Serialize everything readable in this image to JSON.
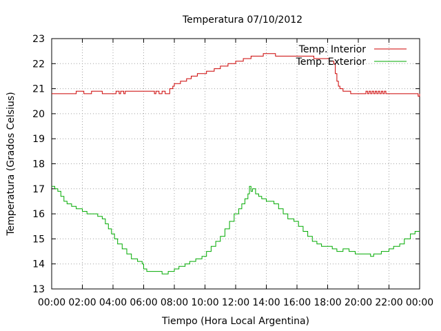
{
  "chart_data": {
    "type": "line",
    "title": "Temperatura 07/10/2012",
    "xlabel": "Tiempo (Hora Local Argentina)",
    "ylabel": "Temperatura (Grados Celsius)",
    "xlim": [
      0,
      24
    ],
    "ylim": [
      13,
      23
    ],
    "grid": true,
    "legend_position": "top-right",
    "x_tick_labels": [
      "00:00",
      "02:00",
      "04:00",
      "06:00",
      "08:00",
      "10:00",
      "12:00",
      "14:00",
      "16:00",
      "18:00",
      "20:00",
      "22:00",
      "00:00"
    ],
    "y_tick_labels": [
      "13",
      "14",
      "15",
      "16",
      "17",
      "18",
      "19",
      "20",
      "21",
      "22",
      "23"
    ],
    "series": [
      {
        "name": "Temp. Interior",
        "color": "#cc0000",
        "points": [
          [
            0.0,
            20.8
          ],
          [
            1.5,
            20.8
          ],
          [
            1.6,
            20.9
          ],
          [
            2.0,
            20.9
          ],
          [
            2.1,
            20.8
          ],
          [
            2.5,
            20.8
          ],
          [
            2.6,
            20.9
          ],
          [
            3.2,
            20.9
          ],
          [
            3.3,
            20.8
          ],
          [
            4.1,
            20.8
          ],
          [
            4.2,
            20.9
          ],
          [
            4.4,
            20.8
          ],
          [
            4.5,
            20.9
          ],
          [
            4.7,
            20.8
          ],
          [
            4.8,
            20.9
          ],
          [
            6.6,
            20.9
          ],
          [
            6.7,
            20.8
          ],
          [
            6.8,
            20.9
          ],
          [
            7.0,
            20.8
          ],
          [
            7.2,
            20.9
          ],
          [
            7.4,
            20.8
          ],
          [
            7.6,
            20.8
          ],
          [
            7.7,
            21.0
          ],
          [
            7.9,
            21.1
          ],
          [
            8.0,
            21.2
          ],
          [
            8.4,
            21.3
          ],
          [
            8.8,
            21.4
          ],
          [
            9.1,
            21.5
          ],
          [
            9.5,
            21.6
          ],
          [
            10.0,
            21.6
          ],
          [
            10.1,
            21.7
          ],
          [
            10.6,
            21.8
          ],
          [
            11.0,
            21.9
          ],
          [
            11.5,
            22.0
          ],
          [
            12.0,
            22.1
          ],
          [
            12.5,
            22.2
          ],
          [
            13.0,
            22.3
          ],
          [
            13.7,
            22.3
          ],
          [
            13.8,
            22.4
          ],
          [
            14.5,
            22.4
          ],
          [
            14.6,
            22.3
          ],
          [
            17.0,
            22.3
          ],
          [
            17.1,
            22.2
          ],
          [
            18.0,
            22.2
          ],
          [
            18.1,
            22.1
          ],
          [
            18.4,
            22.0
          ],
          [
            18.5,
            21.6
          ],
          [
            18.6,
            21.3
          ],
          [
            18.7,
            21.1
          ],
          [
            18.8,
            21.0
          ],
          [
            19.0,
            20.9
          ],
          [
            19.5,
            20.8
          ],
          [
            20.4,
            20.8
          ],
          [
            20.5,
            20.9
          ],
          [
            20.6,
            20.8
          ],
          [
            20.7,
            20.9
          ],
          [
            20.8,
            20.8
          ],
          [
            20.9,
            20.9
          ],
          [
            21.0,
            20.8
          ],
          [
            21.1,
            20.9
          ],
          [
            21.2,
            20.8
          ],
          [
            21.3,
            20.9
          ],
          [
            21.4,
            20.8
          ],
          [
            21.5,
            20.9
          ],
          [
            21.6,
            20.8
          ],
          [
            21.7,
            20.9
          ],
          [
            21.8,
            20.8
          ],
          [
            23.8,
            20.8
          ],
          [
            23.9,
            20.7
          ],
          [
            24.0,
            20.8
          ]
        ]
      },
      {
        "name": "Temp. Exterior",
        "color": "#00aa00",
        "points": [
          [
            0.0,
            17.1
          ],
          [
            0.2,
            17.0
          ],
          [
            0.4,
            16.9
          ],
          [
            0.6,
            16.7
          ],
          [
            0.8,
            16.5
          ],
          [
            1.0,
            16.4
          ],
          [
            1.3,
            16.3
          ],
          [
            1.6,
            16.2
          ],
          [
            2.0,
            16.1
          ],
          [
            2.3,
            16.0
          ],
          [
            2.6,
            16.0
          ],
          [
            3.0,
            15.9
          ],
          [
            3.3,
            15.8
          ],
          [
            3.5,
            15.6
          ],
          [
            3.7,
            15.4
          ],
          [
            3.9,
            15.2
          ],
          [
            4.1,
            15.0
          ],
          [
            4.3,
            14.8
          ],
          [
            4.6,
            14.6
          ],
          [
            4.9,
            14.4
          ],
          [
            5.2,
            14.2
          ],
          [
            5.6,
            14.1
          ],
          [
            5.9,
            14.0
          ],
          [
            6.0,
            13.8
          ],
          [
            6.2,
            13.7
          ],
          [
            7.0,
            13.7
          ],
          [
            7.2,
            13.6
          ],
          [
            7.6,
            13.7
          ],
          [
            8.0,
            13.8
          ],
          [
            8.3,
            13.9
          ],
          [
            8.7,
            14.0
          ],
          [
            9.0,
            14.1
          ],
          [
            9.4,
            14.2
          ],
          [
            9.8,
            14.3
          ],
          [
            10.1,
            14.5
          ],
          [
            10.4,
            14.7
          ],
          [
            10.7,
            14.9
          ],
          [
            11.0,
            15.1
          ],
          [
            11.3,
            15.4
          ],
          [
            11.6,
            15.7
          ],
          [
            11.9,
            16.0
          ],
          [
            12.2,
            16.2
          ],
          [
            12.4,
            16.4
          ],
          [
            12.6,
            16.6
          ],
          [
            12.8,
            16.8
          ],
          [
            12.9,
            17.1
          ],
          [
            13.0,
            16.9
          ],
          [
            13.1,
            17.0
          ],
          [
            13.3,
            16.8
          ],
          [
            13.5,
            16.7
          ],
          [
            13.7,
            16.6
          ],
          [
            14.0,
            16.5
          ],
          [
            14.3,
            16.5
          ],
          [
            14.5,
            16.4
          ],
          [
            14.8,
            16.2
          ],
          [
            15.1,
            16.0
          ],
          [
            15.4,
            15.8
          ],
          [
            15.8,
            15.7
          ],
          [
            16.1,
            15.5
          ],
          [
            16.4,
            15.3
          ],
          [
            16.7,
            15.1
          ],
          [
            17.0,
            14.9
          ],
          [
            17.3,
            14.8
          ],
          [
            17.6,
            14.7
          ],
          [
            18.0,
            14.7
          ],
          [
            18.3,
            14.6
          ],
          [
            18.6,
            14.5
          ],
          [
            19.0,
            14.6
          ],
          [
            19.4,
            14.5
          ],
          [
            19.8,
            14.4
          ],
          [
            20.2,
            14.4
          ],
          [
            20.6,
            14.4
          ],
          [
            20.8,
            14.3
          ],
          [
            21.0,
            14.4
          ],
          [
            21.5,
            14.5
          ],
          [
            22.0,
            14.6
          ],
          [
            22.3,
            14.7
          ],
          [
            22.7,
            14.8
          ],
          [
            23.0,
            15.0
          ],
          [
            23.4,
            15.2
          ],
          [
            23.7,
            15.3
          ],
          [
            24.0,
            15.3
          ]
        ]
      }
    ]
  }
}
